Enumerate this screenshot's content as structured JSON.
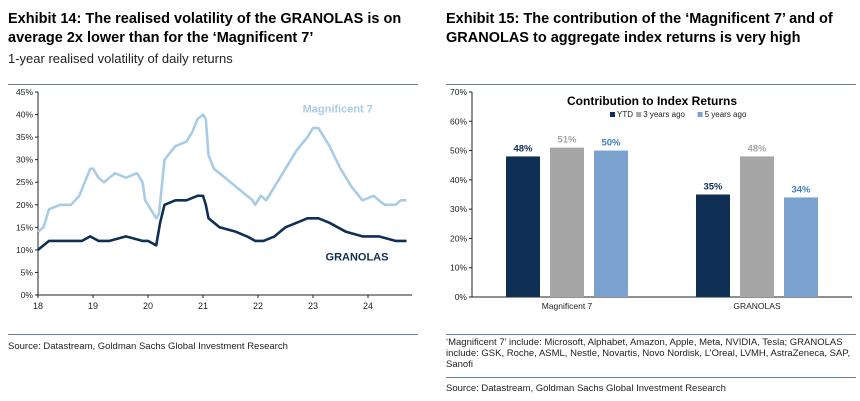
{
  "left": {
    "title": "Exhibit 14: The realised volatility of the GRANOLAS is on average 2x lower than for the ‘Magnificent 7’",
    "subtitle": "1-year realised volatility of daily returns",
    "source": "Source: Datastream, Goldman Sachs Global Investment Research"
  },
  "right": {
    "title": "Exhibit 15: The contribution of the ‘Magnificent 7’ and of GRANOLAS to aggregate index returns is very high",
    "note": "‘Magnificent 7’ include: Microsoft, Alphabet, Amazon, Apple, Meta, NVIDIA, Tesla; GRANOLAS include: GSK, Roche, ASML, Nestle, Novartis, Novo Nordisk, L’Oreal, LVMH, AstraZeneca, SAP, Sanofi",
    "source": "Source: Datastream, Goldman Sachs Global Investment Research"
  },
  "chart_data": [
    {
      "type": "line",
      "title": "",
      "xlabel": "",
      "ylabel": "",
      "xlim": [
        18,
        24.8
      ],
      "ylim": [
        0,
        45
      ],
      "x_ticks": [
        "18",
        "19",
        "20",
        "21",
        "22",
        "23",
        "24"
      ],
      "y_ticks": [
        "0%",
        "5%",
        "10%",
        "15%",
        "20%",
        "25%",
        "30%",
        "35%",
        "40%",
        "45%"
      ],
      "grid": false,
      "series": [
        {
          "name": "Magnificent 7",
          "color": "#a9cce6",
          "x": [
            18.0,
            18.1,
            18.2,
            18.4,
            18.6,
            18.75,
            18.85,
            18.95,
            19.0,
            19.1,
            19.2,
            19.4,
            19.6,
            19.8,
            19.9,
            19.95,
            20.05,
            20.15,
            20.2,
            20.3,
            20.5,
            20.7,
            20.8,
            20.9,
            21.0,
            21.05,
            21.1,
            21.2,
            21.4,
            21.6,
            21.8,
            21.9,
            21.95,
            22.05,
            22.15,
            22.3,
            22.5,
            22.7,
            22.9,
            23.0,
            23.1,
            23.3,
            23.5,
            23.7,
            23.9,
            24.1,
            24.3,
            24.5,
            24.6,
            24.7
          ],
          "values": [
            14,
            15,
            19,
            20,
            20,
            22,
            25,
            28,
            28,
            26,
            25,
            27,
            26,
            27,
            25,
            21,
            19,
            17,
            18,
            30,
            33,
            34,
            36,
            39,
            40,
            39,
            31,
            28,
            26,
            24,
            22,
            21,
            20,
            22,
            21,
            24,
            28,
            32,
            35,
            37,
            37,
            33,
            28,
            24,
            21,
            22,
            20,
            20,
            21,
            21
          ]
        },
        {
          "name": "GRANOLAS",
          "color": "#0f2f55",
          "x": [
            18.0,
            18.1,
            18.2,
            18.5,
            18.8,
            18.95,
            19.1,
            19.3,
            19.6,
            19.9,
            20.0,
            20.15,
            20.22,
            20.3,
            20.5,
            20.7,
            20.9,
            21.0,
            21.05,
            21.1,
            21.3,
            21.6,
            21.8,
            21.95,
            22.1,
            22.3,
            22.5,
            22.7,
            22.9,
            23.1,
            23.3,
            23.6,
            23.9,
            24.2,
            24.5,
            24.7
          ],
          "values": [
            10,
            11,
            12,
            12,
            12,
            13,
            12,
            12,
            13,
            12,
            12,
            11,
            16,
            20,
            21,
            21,
            22,
            22,
            20,
            17,
            15,
            14,
            13,
            12,
            12,
            13,
            15,
            16,
            17,
            17,
            16,
            14,
            13,
            13,
            12,
            12
          ]
        }
      ],
      "annotations": [
        "Magnificent 7",
        "GRANOLAS"
      ]
    },
    {
      "type": "bar",
      "title": "Contribution to Index Returns",
      "categories": [
        "Magnificent 7",
        "GRANOLAS"
      ],
      "ylim": [
        0,
        70
      ],
      "y_ticks": [
        "0%",
        "10%",
        "20%",
        "30%",
        "40%",
        "50%",
        "60%",
        "70%"
      ],
      "legend_position": "top-center",
      "grid": false,
      "series": [
        {
          "name": "YTD",
          "color": "#0f2f55",
          "label_color": "#0f2f55",
          "values": [
            48,
            35
          ],
          "labels": [
            "48%",
            "35%"
          ]
        },
        {
          "name": "3 years ago",
          "color": "#a6a6a6",
          "label_color": "#a6a6a6",
          "values": [
            51,
            48
          ],
          "labels": [
            "51%",
            "48%"
          ]
        },
        {
          "name": "5 years ago",
          "color": "#7ba1ce",
          "label_color": "#3f7fc0",
          "values": [
            50,
            34
          ],
          "labels": [
            "50%",
            "34%"
          ]
        }
      ]
    }
  ]
}
